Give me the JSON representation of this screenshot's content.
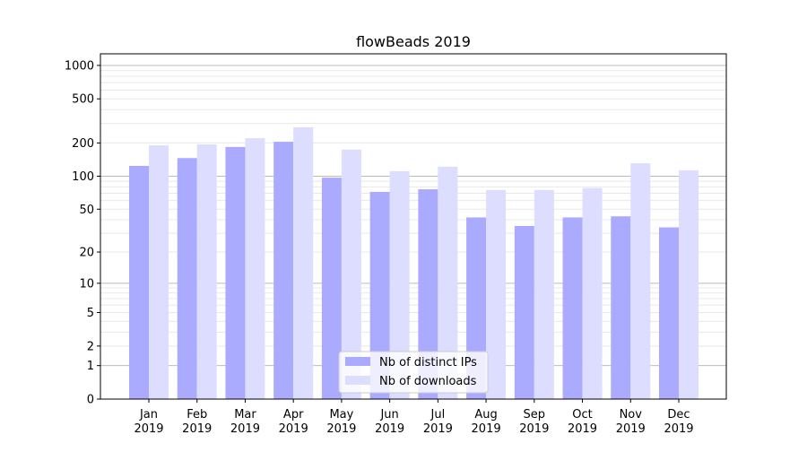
{
  "chart_data": {
    "type": "bar",
    "title": "flowBeads 2019",
    "xlabel": "",
    "ylabel": "",
    "yscale": "log(y+1)",
    "ylim": [
      0,
      1300
    ],
    "yticks": [
      0,
      1,
      2,
      5,
      10,
      20,
      50,
      100,
      200,
      500,
      1000
    ],
    "grid": true,
    "legend_position": "lower center",
    "categories": [
      [
        "Jan",
        "2019"
      ],
      [
        "Feb",
        "2019"
      ],
      [
        "Mar",
        "2019"
      ],
      [
        "Apr",
        "2019"
      ],
      [
        "May",
        "2019"
      ],
      [
        "Jun",
        "2019"
      ],
      [
        "Jul",
        "2019"
      ],
      [
        "Aug",
        "2019"
      ],
      [
        "Sep",
        "2019"
      ],
      [
        "Oct",
        "2019"
      ],
      [
        "Nov",
        "2019"
      ],
      [
        "Dec",
        "2019"
      ]
    ],
    "series": [
      {
        "name": "Nb of distinct IPs",
        "color": "#aaaaff",
        "values": [
          124,
          146,
          184,
          205,
          97,
          72,
          76,
          42,
          35,
          42,
          43,
          34
        ]
      },
      {
        "name": "Nb of downloads",
        "color": "#ddddff",
        "values": [
          190,
          194,
          221,
          277,
          174,
          111,
          122,
          75,
          75,
          78,
          131,
          113
        ]
      }
    ]
  }
}
